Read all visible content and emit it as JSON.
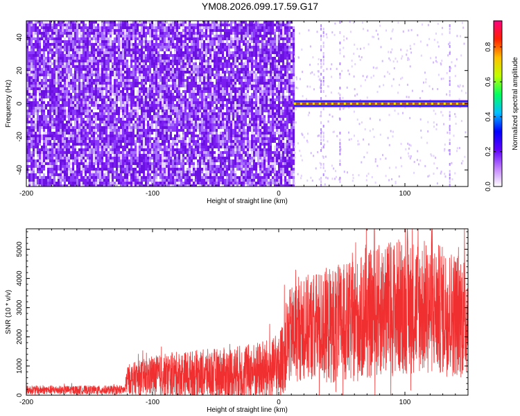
{
  "title": "YM08.2026.099.17.59.G17",
  "colors": {
    "spectrogram_noise": "#7a1cf0",
    "line_core": "#ff2020",
    "line_edge": "#2020ff",
    "snr_line": "#f03030",
    "colorbar_stops": [
      "#ffffff",
      "#c080ff",
      "#6000ff",
      "#0000ff",
      "#00c0ff",
      "#00ff60",
      "#c0ff00",
      "#ffc000",
      "#ff2000",
      "#ff0080"
    ]
  },
  "chart_data": [
    {
      "type": "heatmap",
      "title": "YM08.2026.099.17.59.G17",
      "xlabel": "Height of straight line (km)",
      "ylabel": "Frequency (Hz)",
      "xlim": [
        -200,
        150
      ],
      "ylim": [
        -50,
        50
      ],
      "x_ticks": [
        -200,
        -100,
        0,
        100
      ],
      "y_ticks": [
        -40,
        -20,
        0,
        20,
        40
      ],
      "x_tick_labels": [
        "-200",
        "-100",
        "0",
        "100"
      ],
      "y_tick_labels": [
        "-40",
        "-20",
        "0",
        "20",
        "40"
      ],
      "colorbar": {
        "label": "Normalized spectral amplitude",
        "range": [
          0,
          0.95
        ],
        "ticks": [
          0.0,
          0.2,
          0.4,
          0.6,
          0.8
        ],
        "tick_labels": [
          "0.0",
          "0.2",
          "0.4",
          "0.6",
          "0.8"
        ]
      },
      "features": {
        "noise_region_x": [
          -200,
          12
        ],
        "signal_line_x": [
          12,
          150
        ],
        "signal_line_frequency": 0,
        "signal_line_amplitude": 0.9,
        "vertical_artifacts_x": [
          33,
          35,
          48,
          135
        ]
      }
    },
    {
      "type": "line",
      "xlabel": "Height of straight line (km)",
      "ylabel": "SNR (10 * v/v)",
      "xlim": [
        -200,
        150
      ],
      "ylim": [
        0,
        5700
      ],
      "x_ticks": [
        -200,
        -100,
        0,
        100
      ],
      "y_ticks": [
        0,
        1000,
        2000,
        3000,
        4000,
        5000
      ],
      "x_tick_labels": [
        "-200",
        "-100",
        "0",
        "100"
      ],
      "y_tick_labels": [
        "0",
        "1000",
        "2000",
        "3000",
        "4000",
        "5000"
      ],
      "envelope": {
        "x": [
          -200,
          -122,
          -120,
          -100,
          -80,
          -60,
          -40,
          -20,
          0,
          5,
          10,
          20,
          40,
          60,
          80,
          100,
          120,
          140,
          150
        ],
        "mean": [
          180,
          180,
          550,
          650,
          700,
          720,
          750,
          800,
          900,
          1600,
          2100,
          2300,
          2400,
          2500,
          2900,
          3100,
          3000,
          2800,
          2700
        ],
        "range": [
          150,
          150,
          500,
          700,
          800,
          850,
          900,
          1000,
          1100,
          1500,
          1700,
          1800,
          2000,
          2100,
          2300,
          2400,
          2300,
          2200,
          2100
        ]
      },
      "max_value": 5700,
      "max_at_x": 102
    }
  ]
}
